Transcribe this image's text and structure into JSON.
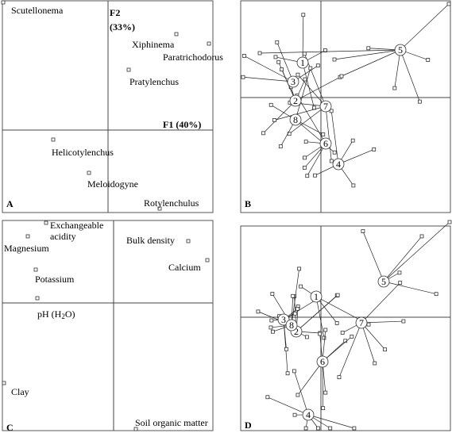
{
  "panels": [
    {
      "letter": "A",
      "axis_labels": [
        "F2",
        "(33%)",
        "F1 (40%)"
      ],
      "labels": [
        "Scutellonema",
        "Xiphinema",
        "Paratrichodorus",
        "Pratylenchus",
        "Helicotylenchus",
        "Meloidogyne",
        "Rotylenchulus"
      ]
    },
    {
      "letter": "B",
      "groups": [
        "1",
        "2",
        "3",
        "4",
        "5",
        "6",
        "7",
        "8"
      ]
    },
    {
      "letter": "C",
      "labels": [
        "Exchangeable",
        "acidity",
        "Magnesium",
        "Bulk density",
        "Calcium",
        "Potassium",
        "Clay",
        "Soil organic matter"
      ],
      "ph_label": [
        "pH (H",
        "2",
        "O)"
      ]
    },
    {
      "letter": "D",
      "groups": [
        "1",
        "2",
        "3",
        "4",
        "5",
        "6",
        "7",
        "8"
      ]
    }
  ]
}
